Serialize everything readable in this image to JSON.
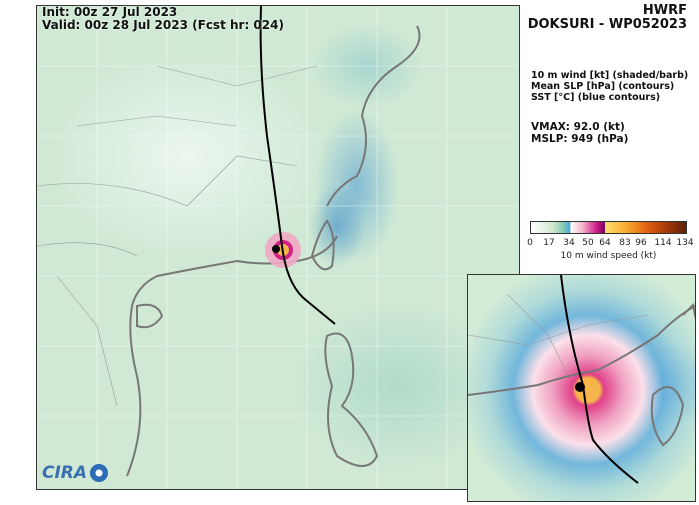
{
  "header": {
    "init": "Init:   00z 27 Jul 2023",
    "valid": "Valid: 00z 28 Jul 2023 (Fcst hr: 024)"
  },
  "title": {
    "model": "HWRF",
    "storm": "DOKSURI - WP052023"
  },
  "legend": {
    "line1": "10 m wind [kt] (shaded/barb)",
    "line2": "Mean SLP [hPa] (contours)",
    "line3": "SST [°C] (blue contours)"
  },
  "stats": {
    "vmax": "VMAX:  92.0 (kt)",
    "mslp": "MSLP:  949 (hPa)"
  },
  "colorbar": {
    "ticks": [
      "0",
      "17",
      "34",
      "50",
      "64",
      "83",
      "96",
      "114",
      "134"
    ],
    "label": "10 m wind speed (kt)"
  },
  "logo": {
    "text": "CIRA"
  }
}
